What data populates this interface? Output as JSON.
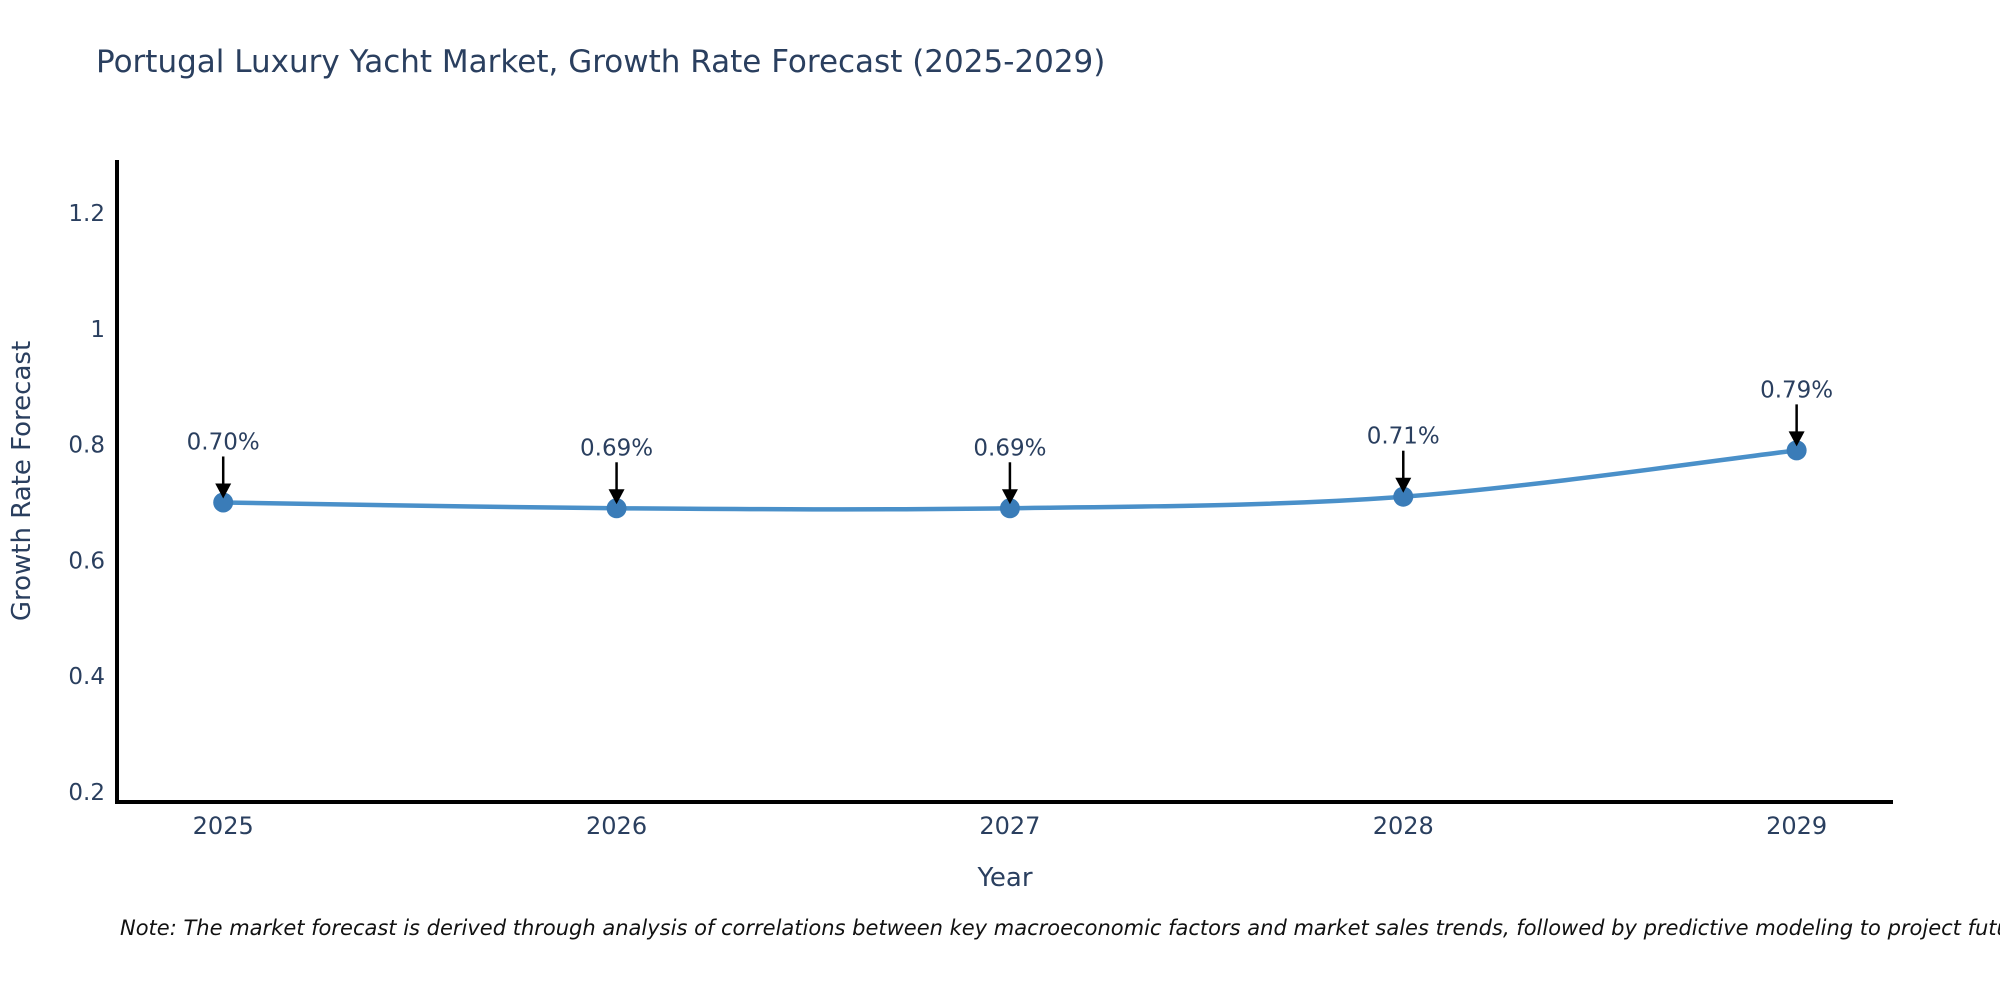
{
  "title": "Portugal Luxury Yacht Market, Growth Rate Forecast (2025-2029)",
  "note": "Note: The market forecast is derived through analysis of correlations between key macroeconomic factors and market sales trends, followed by predictive modeling to project future sales",
  "colors": {
    "line": "#4a90c9",
    "marker": "#3a7cb8",
    "axis": "#000000",
    "arrow": "#000000",
    "label_text": "#2a3f5f",
    "note_text": "#111111",
    "background": "#ffffff"
  },
  "chart_data": {
    "type": "line",
    "title": "Portugal Luxury Yacht Market, Growth Rate Forecast (2025-2029)",
    "xlabel": "Year",
    "ylabel": "Growth Rate Forecast",
    "x": [
      2025,
      2026,
      2027,
      2028,
      2029
    ],
    "series": [
      {
        "name": "Growth Rate Forecast",
        "values": [
          0.7,
          0.69,
          0.69,
          0.71,
          0.79
        ],
        "point_labels": [
          "0.70%",
          "0.69%",
          "0.69%",
          "0.71%",
          "0.79%"
        ]
      }
    ],
    "xlim": [
      2024.73,
      2029.245
    ],
    "ylim": [
      0.1827,
      1.2915
    ],
    "xticks": [
      2025,
      2026,
      2027,
      2028,
      2029
    ],
    "xtick_labels": [
      "2025",
      "2026",
      "2027",
      "2028",
      "2029"
    ],
    "yticks": [
      0.2,
      0.4,
      0.6,
      0.8,
      1,
      1.2
    ],
    "ytick_labels": [
      "0.2",
      "0.4",
      "0.6",
      "0.8",
      "1",
      "1.2"
    ],
    "grid": false,
    "legend_position": "none",
    "line_shape": "spline",
    "annotations": "value labels above each point with downward black arrows"
  }
}
